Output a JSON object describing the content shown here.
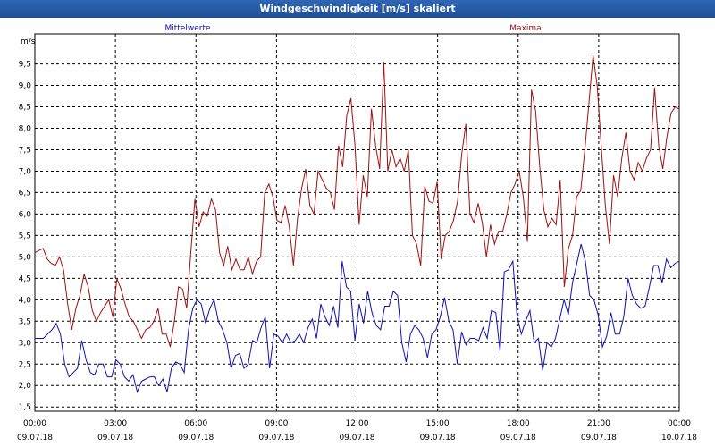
{
  "window": {
    "title": "Windgeschwindigkeit [m/s] skaliert"
  },
  "colors": {
    "mean": "#1010b0",
    "max": "#a01010",
    "grid": "#000000",
    "titlebar": "#2a5ea8"
  },
  "chart_data": {
    "type": "line",
    "title": "Windgeschwindigkeit [m/s] skaliert",
    "ylabel": "m/s",
    "ylim": [
      1.4,
      10.2
    ],
    "xlim": [
      0,
      24
    ],
    "yticks": [
      "1.5",
      "2.0",
      "2.5",
      "3.0",
      "3.5",
      "4.0",
      "4.5",
      "5.0",
      "5.5",
      "6.0",
      "6.5",
      "7.0",
      "7.5",
      "8.0",
      "8.5",
      "9.0",
      "9.5"
    ],
    "ytick_labels": [
      "1,5",
      "2,0",
      "2,5",
      "3,0",
      "3,5",
      "4,0",
      "4,5",
      "5,0",
      "5,5",
      "6,0",
      "6,5",
      "7,0",
      "7,5",
      "8,0",
      "8,5",
      "9,0",
      "9,5"
    ],
    "xticks": [
      {
        "time": "00:00",
        "date": "09.07.18"
      },
      {
        "time": "03:00",
        "date": "09.07.18"
      },
      {
        "time": "06:00",
        "date": "09.07.18"
      },
      {
        "time": "09:00",
        "date": "09.07.18"
      },
      {
        "time": "12:00",
        "date": "09.07.18"
      },
      {
        "time": "15:00",
        "date": "09.07.18"
      },
      {
        "time": "18:00",
        "date": "09.07.18"
      },
      {
        "time": "21:00",
        "date": "09.07.18"
      },
      {
        "time": "00:00",
        "date": "10.07.18"
      }
    ],
    "grid": true,
    "series": [
      {
        "name": "Mittelwerte",
        "color": "#1010b0",
        "values": [
          3.1,
          3.1,
          3.1,
          3.2,
          3.3,
          3.45,
          3.2,
          2.5,
          2.2,
          2.3,
          2.4,
          3.05,
          2.6,
          2.3,
          2.25,
          2.5,
          2.5,
          2.2,
          2.2,
          2.6,
          2.5,
          2.2,
          2.1,
          2.25,
          1.85,
          2.1,
          2.15,
          2.2,
          2.2,
          2.0,
          2.15,
          1.85,
          2.4,
          2.55,
          2.5,
          2.3,
          3.3,
          3.8,
          4.0,
          3.9,
          3.45,
          3.8,
          4.0,
          3.5,
          3.3,
          3.0,
          2.4,
          2.7,
          2.75,
          2.4,
          2.5,
          3.05,
          3.0,
          3.35,
          3.6,
          2.4,
          3.2,
          3.15,
          3.0,
          3.2,
          3.0,
          3.05,
          3.2,
          3.0,
          3.35,
          3.55,
          3.1,
          3.9,
          3.6,
          3.4,
          3.85,
          3.35,
          4.9,
          4.3,
          4.2,
          3.05,
          3.9,
          3.45,
          4.2,
          3.7,
          3.4,
          3.3,
          3.85,
          3.85,
          4.2,
          4.1,
          3.0,
          2.55,
          3.2,
          3.4,
          3.3,
          3.1,
          2.65,
          3.2,
          3.3,
          3.6,
          4.05,
          3.5,
          3.3,
          2.5,
          3.25,
          2.95,
          3.1,
          3.1,
          3.05,
          3.35,
          3.1,
          3.75,
          3.7,
          2.8,
          4.65,
          4.7,
          4.9,
          3.6,
          3.2,
          3.5,
          3.75,
          3.0,
          3.1,
          2.35,
          3.0,
          2.9,
          3.1,
          3.55,
          4.0,
          3.65,
          4.4,
          4.85,
          5.3,
          4.9,
          4.1,
          4.0,
          3.65,
          2.9,
          3.15,
          3.7,
          3.2,
          3.2,
          3.6,
          4.5,
          4.1,
          3.9,
          3.8,
          3.85,
          4.3,
          4.8,
          4.8,
          4.4,
          4.95,
          4.75,
          4.85,
          4.9
        ]
      },
      {
        "name": "Maxima",
        "color": "#a01010",
        "values": [
          5.1,
          5.15,
          5.2,
          4.95,
          4.85,
          4.8,
          5.0,
          4.7,
          3.9,
          3.3,
          3.8,
          4.1,
          4.6,
          4.3,
          3.75,
          3.5,
          3.7,
          3.85,
          4.0,
          3.6,
          4.5,
          4.25,
          3.9,
          3.6,
          3.5,
          3.3,
          3.1,
          3.3,
          3.35,
          3.5,
          3.8,
          3.2,
          3.2,
          2.9,
          3.5,
          4.3,
          4.25,
          3.8,
          5.1,
          6.35,
          5.7,
          6.05,
          5.95,
          6.35,
          6.1,
          5.1,
          4.8,
          5.25,
          4.7,
          4.95,
          4.7,
          4.7,
          5.0,
          4.6,
          4.9,
          5.0,
          6.5,
          6.7,
          6.4,
          5.85,
          5.8,
          6.2,
          5.7,
          4.8,
          5.9,
          6.6,
          7.05,
          6.2,
          6.0,
          7.0,
          6.8,
          6.6,
          6.5,
          6.1,
          7.6,
          7.1,
          8.3,
          8.7,
          7.6,
          5.75,
          6.9,
          6.4,
          8.45,
          7.6,
          7.05,
          9.55,
          7.0,
          7.5,
          7.1,
          7.3,
          7.0,
          7.5,
          5.5,
          5.3,
          4.8,
          6.65,
          6.3,
          6.25,
          6.75,
          4.95,
          5.5,
          5.6,
          5.85,
          6.3,
          7.4,
          8.1,
          6.0,
          5.8,
          6.25,
          5.8,
          5.0,
          5.75,
          5.3,
          5.6,
          5.6,
          6.0,
          6.5,
          6.7,
          7.0,
          6.4,
          5.35,
          8.9,
          8.4,
          7.1,
          6.1,
          5.7,
          5.9,
          5.75,
          6.8,
          4.3,
          5.2,
          5.5,
          6.4,
          6.55,
          7.5,
          8.6,
          9.7,
          9.0,
          7.6,
          6.2,
          5.3,
          6.9,
          6.4,
          7.3,
          7.9,
          7.0,
          6.8,
          7.2,
          7.0,
          7.3,
          7.5,
          8.95,
          7.6,
          7.05,
          7.8,
          8.35,
          8.5,
          8.45
        ]
      }
    ]
  }
}
